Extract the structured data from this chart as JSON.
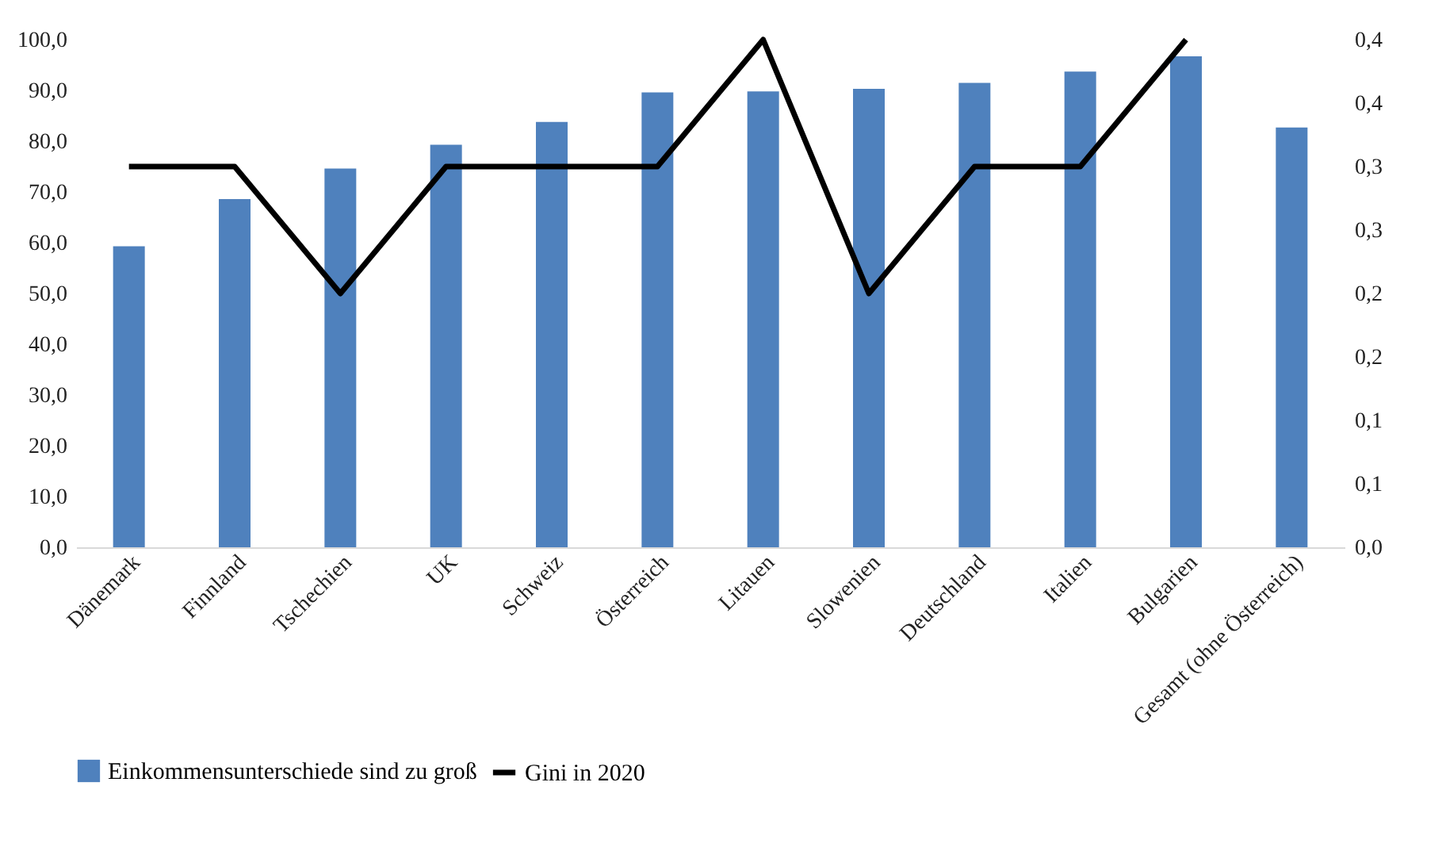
{
  "chart_data": {
    "type": "bar",
    "categories": [
      "Dänemark",
      "Finnland",
      "Tschechien",
      "UK",
      "Schweiz",
      "Österreich",
      "Litauen",
      "Slowenien",
      "Deutschland",
      "Italien",
      "Bulgarien",
      "Gesamt (ohne Österreich)"
    ],
    "series": [
      {
        "name": "Einkommensunterschiede sind zu groß",
        "color": "#4f81bd",
        "values": [
          59.3,
          68.6,
          74.6,
          79.3,
          83.8,
          89.6,
          89.8,
          90.3,
          91.5,
          93.7,
          96.7,
          82.7
        ]
      },
      {
        "name": "Gini in 2020",
        "type": "line",
        "axis": "y2",
        "color": "#000000",
        "values": [
          0.3,
          0.3,
          0.2,
          0.3,
          0.3,
          0.3,
          0.4,
          0.2,
          0.3,
          0.3,
          0.4,
          null
        ]
      }
    ],
    "ylim": [
      0,
      100
    ],
    "yticks": [
      {
        "value": 0,
        "label": "0,0"
      },
      {
        "value": 10,
        "label": "10,0"
      },
      {
        "value": 20,
        "label": "20,0"
      },
      {
        "value": 30,
        "label": "30,0"
      },
      {
        "value": 40,
        "label": "40,0"
      },
      {
        "value": 50,
        "label": "50,0"
      },
      {
        "value": 60,
        "label": "60,0"
      },
      {
        "value": 70,
        "label": "70,0"
      },
      {
        "value": 80,
        "label": "80,0"
      },
      {
        "value": 90,
        "label": "90,0"
      },
      {
        "value": 100,
        "label": "100,0"
      }
    ],
    "y2lim": [
      0,
      0.4
    ],
    "y2ticks": [
      {
        "value": 0,
        "label": "0,0"
      },
      {
        "value": 0.05,
        "label": "0,1"
      },
      {
        "value": 0.1,
        "label": "0,1"
      },
      {
        "value": 0.15,
        "label": "0,2"
      },
      {
        "value": 0.2,
        "label": "0,2"
      },
      {
        "value": 0.25,
        "label": "0,3"
      },
      {
        "value": 0.3,
        "label": "0,3"
      },
      {
        "value": 0.35,
        "label": "0,4"
      },
      {
        "value": 0.4,
        "label": "0,4"
      }
    ],
    "grid": false,
    "legend": "bottom"
  }
}
